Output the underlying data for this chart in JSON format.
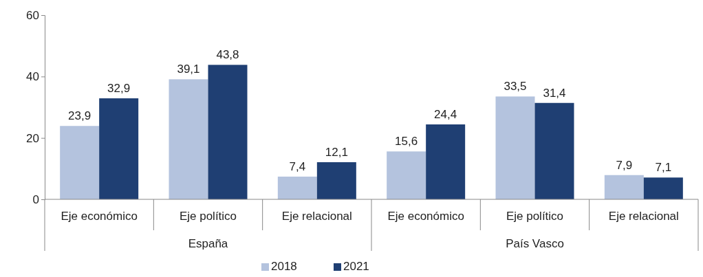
{
  "chart_data": {
    "type": "bar",
    "categories": [
      "Eje económico",
      "Eje político",
      "Eje relacional",
      "Eje económico",
      "Eje político",
      "Eje relacional"
    ],
    "series": [
      {
        "name": "2018",
        "color": "#b4c3de",
        "values": [
          23.9,
          39.1,
          7.4,
          15.6,
          33.5,
          7.9
        ],
        "value_labels": [
          "23,9",
          "39,1",
          "7,4",
          "15,6",
          "33,5",
          "7,9"
        ]
      },
      {
        "name": "2021",
        "color": "#1f3f73",
        "values": [
          32.9,
          43.8,
          12.1,
          24.4,
          31.4,
          7.1
        ],
        "value_labels": [
          "32,9",
          "43,8",
          "12,1",
          "24,4",
          "31,4",
          "7,1"
        ]
      }
    ],
    "annotations": [
      "España",
      "País Vasco"
    ],
    "ylim": [
      0,
      60
    ],
    "yticks": [
      0,
      20,
      40,
      60
    ],
    "grid": false,
    "legend": "bottom"
  }
}
